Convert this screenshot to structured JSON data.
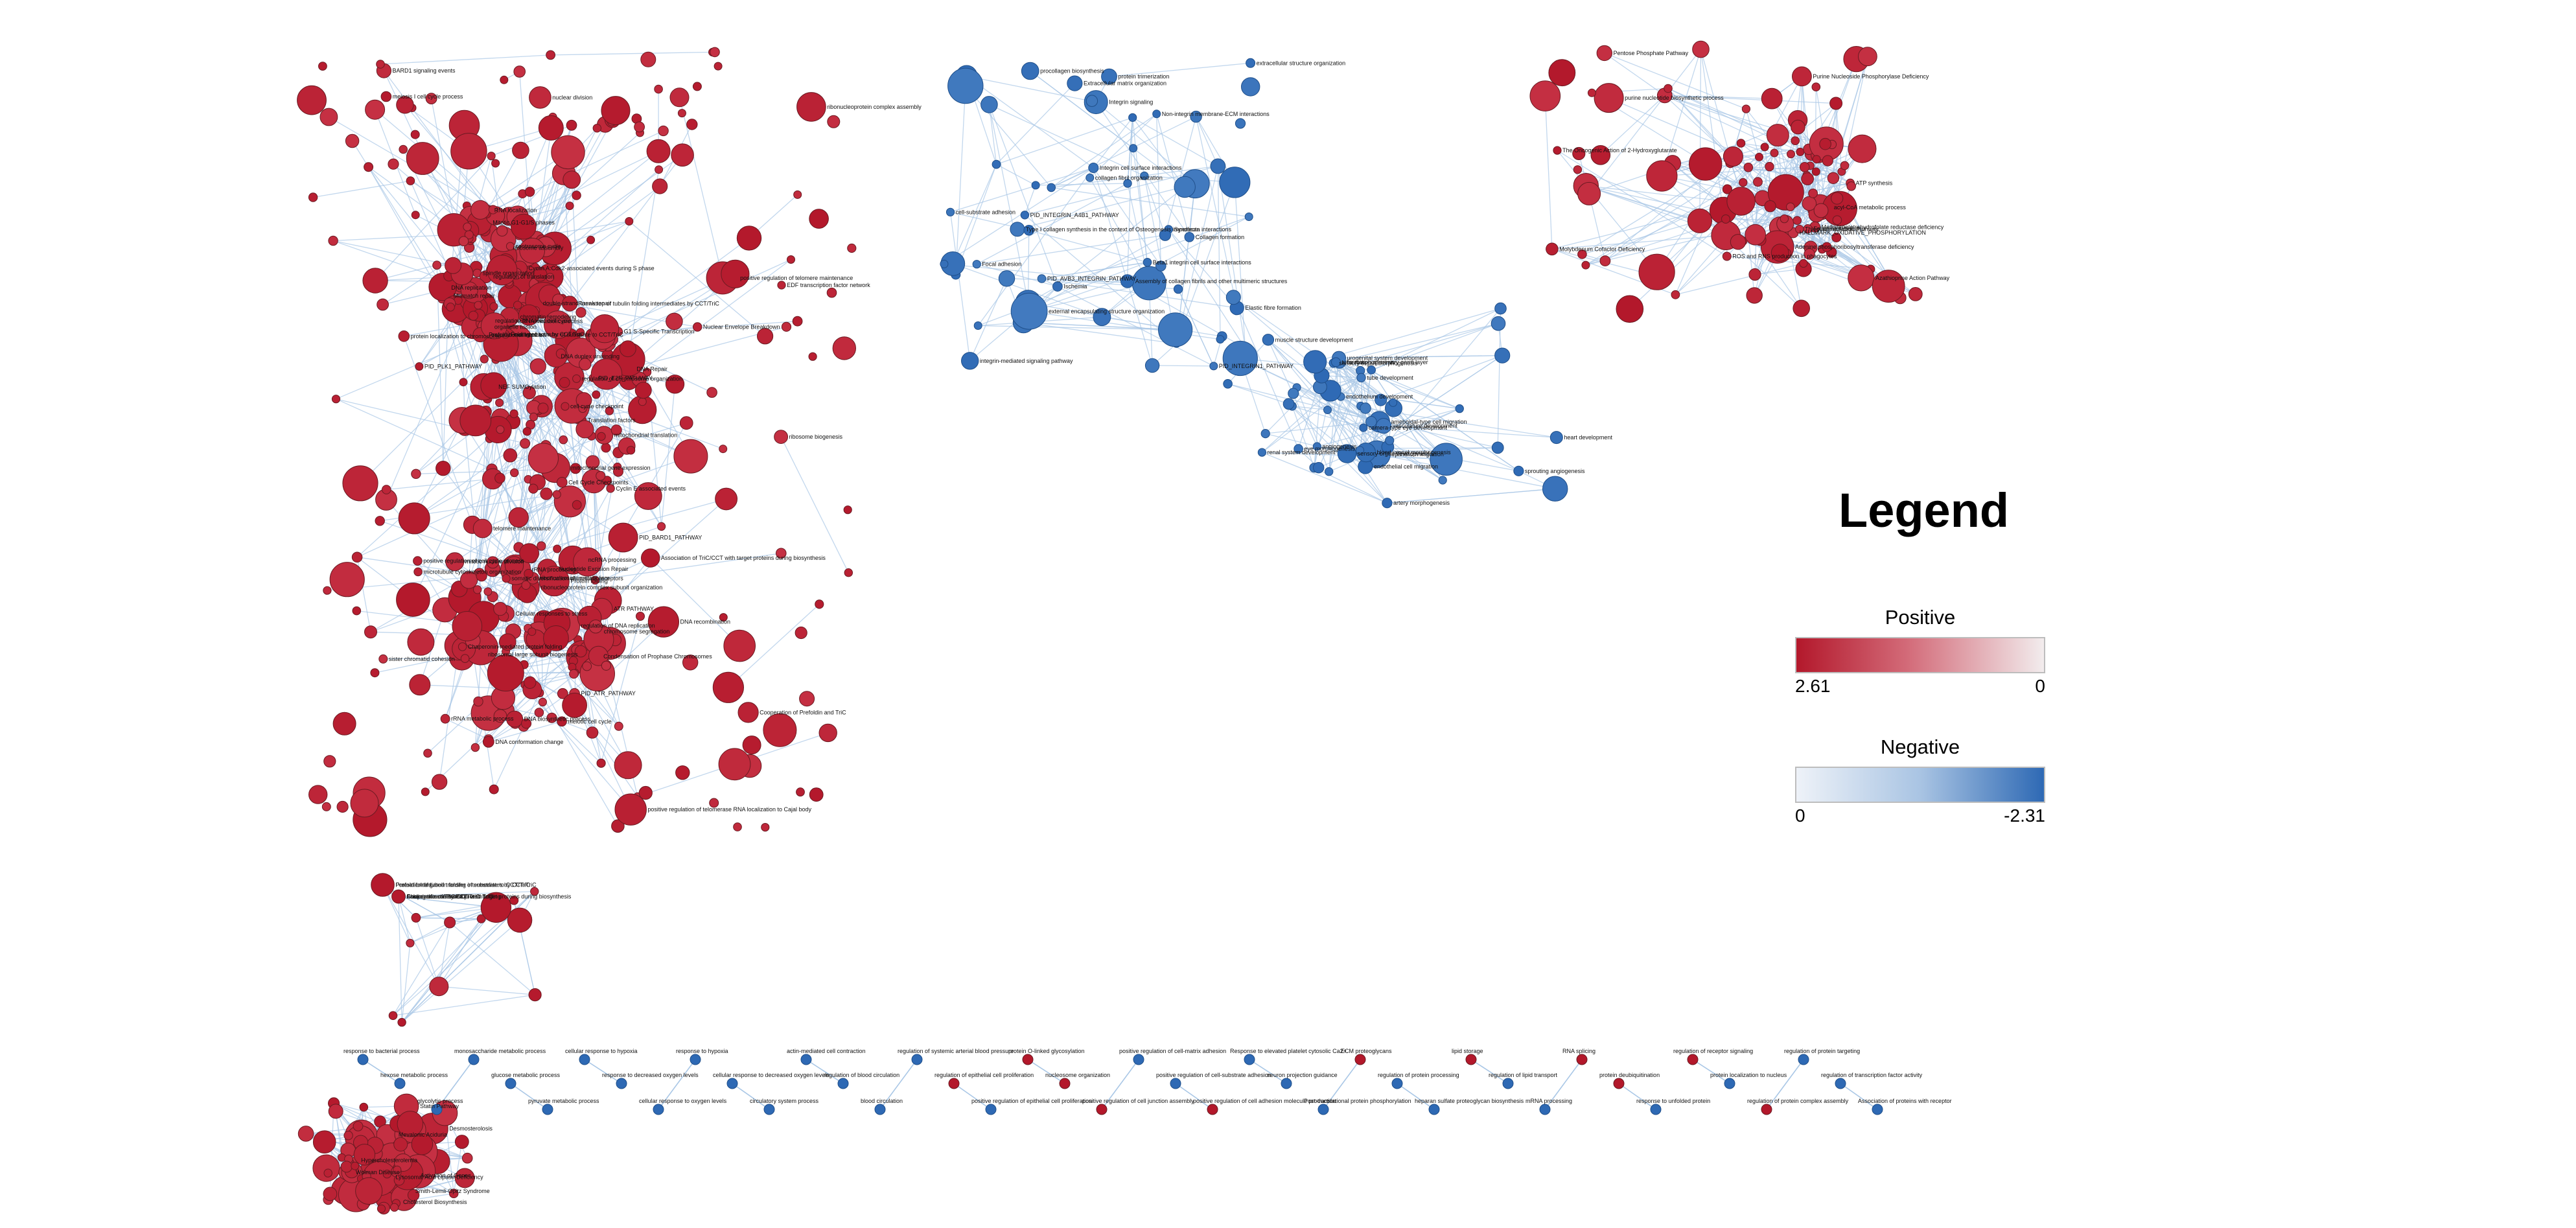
{
  "colors": {
    "positive_max": "#b3182b",
    "positive_min": "#f2eced",
    "negative_min": "#eef2f8",
    "negative_max": "#2e69b4",
    "edge": "#a9c7e6",
    "node_stroke": "#6b1a22"
  },
  "legend": {
    "title": "Legend",
    "positive": {
      "label": "Positive",
      "max_label": "2.61",
      "min_label": "0"
    },
    "negative": {
      "label": "Negative",
      "min_label": "0",
      "max_label": "-2.31"
    }
  },
  "labels": {
    "red_main": [
      "ribonucleoprotein complex assembly",
      "ribosomal large subunit biogenesis",
      "ribosome assembly",
      "ribonucleoprotein complex subunit organization",
      "ribosome biogenesis",
      "rRNA metabolic process",
      "ncRNA processing",
      "mitochondrial translation",
      "mitochondrial gene expression",
      "Translation factors",
      "translational initiation",
      "ncRNA metabolic process",
      "rRNA processing",
      "RNA localization",
      "Cellular responses to stress",
      "Condensation of Prophase Chromosomes",
      "NEF SUMOylation",
      "DNA replication",
      "Cell Cycle Checkpoints",
      "EDF transcription factor network",
      "G1 S-Specific Transcription",
      "PID_E2F_PATHWAY",
      "Mitotic G1-G1/S phases",
      "Cyclin E associated events",
      "Nuclear Envelope Breakdown",
      "ATR PATHWAY",
      "PID_ATR_PATHWAY",
      "DNA Repair",
      "regulation of DNA replication",
      "BARD1 signaling events",
      "PID_BARD1_PATHWAY",
      "somatic diversification of immune receptors",
      "DNA recombination",
      "double-strand break repair",
      "Nucleotide Excision Repair",
      "Mismatch repair",
      "telomere maintenance",
      "PID_PLK1_PATHWAY",
      "Cyclin A:Cdk2-associated events during S phase",
      "DNA conformation change",
      "DNA duplex unwinding",
      "sister chromatid cohesion",
      "cell cycle checkpoint",
      "mitotic nuclear division",
      "chromosome segregation",
      "positive regulation of cell cycle process",
      "spindle organization",
      "chromatin remodeling",
      "meiotic cell cycle",
      "meiosis I cell cycle process",
      "nuclear division",
      "organelle fission",
      "microtubule cytoskeleton organization",
      "regulation of chromosome organization",
      "positive regulation of telomere maintenance",
      "regulation of translation",
      "DNA biosynthetic process",
      "centrosome cycle",
      "regulation of mitotic cell cycle",
      "protein localization to chromosome",
      "positive regulation of telomerase RNA localization to Cajal body",
      "ribonucleoside metabolism",
      "Cooperation of Prefoldin and TriC",
      "Prefoldin mediated transfer of substrate to CCT/TriC",
      "Folding of actin by CCT/TriC",
      "Formation of tubulin folding intermediates by CCT/TriC",
      "Chaperonin-mediated protein folding",
      "Protein folding",
      "Association of TriC/CCT with target proteins during biosynthesis"
    ],
    "red_cluster_right": [
      "ROS and RNS production in phagocytes",
      "ATP synthesis",
      "acyl-CoA metabolic process",
      "purine nucleotide biosynthetic process",
      "The Oncogenic Action of 2-Hydroxyglutarate",
      "HALLMARK_OXIDATIVE_PHOSPHORYLATION",
      "Purine Nucleoside Phosphorylase Deficiency",
      "Adenine phosphoribosyltransferase deficiency",
      "Methylenetetrahydrofolate reductase deficiency",
      "Folate Metabolism",
      "Molybdenum Cofactor Deficiency",
      "Pentose Phosphate Pathway",
      "Azathioprine Action Pathway",
      "Thioguanine Action Pathway"
    ],
    "red_cluster_bottom": [
      "Activation of Genes",
      "Cholesterol Biosynthesis",
      "Lysosomal Acid Lipase Deficiency",
      "Smith-Lemli-Opitz Syndrome",
      "Desmosterolosis",
      "Hypercholesterolemia",
      "Mevalonic Aciduria",
      "Wolman Disease",
      "Statin Pathway"
    ],
    "blue_top": [
      "PID_INTEGRIN_A4B1_PATHWAY",
      "Beta1 integrin cell surface interactions",
      "Focal adhesion",
      "integrin-mediated signaling pathway",
      "cell-substrate adhesion",
      "PID_INTEGRIN1_PATHWAY",
      "PID_AVB3_INTEGRIN_PATHWAY",
      "Non-integrin membrane-ECM interactions",
      "Integrin cell surface interactions",
      "Integrin signaling",
      "Syndecan interactions",
      "Extracellular matrix organization",
      "Elastic fibre formation",
      "external encapsulating structure organization",
      "Assembly of collagen fibrils and other multimeric structures",
      "collagen fibril organization",
      "Collagen formation",
      "procollagen biosynthesis",
      "Type I collagen synthesis in the context of Osteogenesis imperfecta",
      "protein trimerization",
      "Ischemia",
      "extracellular structure organization"
    ],
    "blue_mid": [
      "angiogenesis",
      "formation of primary germ layer",
      "endothelium development",
      "vasculature development",
      "blood vessel morphogenesis",
      "tube morphogenesis",
      "tube development",
      "sprouting angiogenesis",
      "ameboidal-type cell migration",
      "epithelium migration",
      "heart development",
      "renal system development",
      "urogenital system development",
      "eye morphogenesis",
      "camera-type eye development",
      "sensory organ development",
      "sensory organ morphogenesis",
      "muscle structure development",
      "artery morphogenesis",
      "endothelial cell migration"
    ],
    "bottom_row": [
      "response to bacterial process",
      "hexose metabolic process",
      "glycolytic process",
      "monosaccharide metabolic process",
      "glucose metabolic process",
      "pyruvate metabolic process",
      "cellular response to hypoxia",
      "response to decreased oxygen levels",
      "cellular response to oxygen levels",
      "response to hypoxia",
      "cellular response to decreased oxygen levels",
      "circulatory system process",
      "actin-mediated cell contraction",
      "regulation of blood circulation",
      "blood circulation",
      "regulation of systemic arterial blood pressure",
      "regulation of epithelial cell proliferation",
      "positive regulation of epithelial cell proliferation",
      "protein O-linked glycosylation",
      "nucleosome organization",
      "positive regulation of cell junction assembly",
      "positive regulation of cell-matrix adhesion",
      "positive regulation of cell-substrate adhesion",
      "positive regulation of cell adhesion molecule production",
      "Response to elevated platelet cytosolic Ca2+",
      "neuron projection guidance",
      "Post-translational protein phosphorylation",
      "ECM proteoglycans",
      "regulation of protein processing",
      "heparan sulfate proteoglycan biosynthesis",
      "lipid storage",
      "regulation of lipid transport",
      "mRNA processing",
      "RNA splicing",
      "protein deubiquitination",
      "response to unfolded protein",
      "regulation of receptor signaling",
      "protein localization to nucleus",
      "regulation of protein complex assembly",
      "regulation of protein targeting",
      "regulation of transcription factor activity",
      "Association of proteins with receptor"
    ]
  }
}
